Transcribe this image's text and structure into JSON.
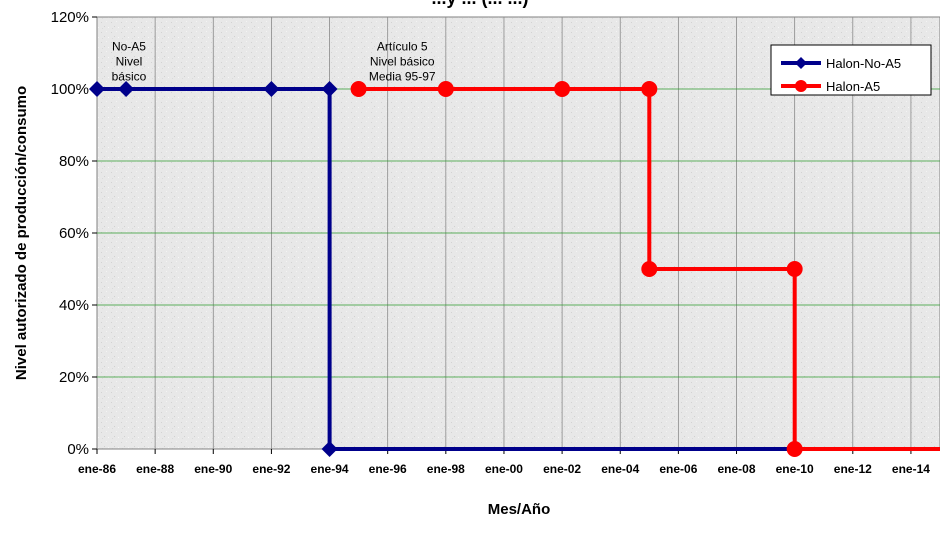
{
  "chart_data": {
    "type": "line",
    "title": "...y ... (... ...)",
    "xlabel": "Mes/Año",
    "ylabel": "Nivel autorizado de producción/consumo",
    "x_tick_labels": [
      "ene-86",
      "ene-88",
      "ene-90",
      "ene-92",
      "ene-94",
      "ene-96",
      "ene-98",
      "ene-00",
      "ene-02",
      "ene-04",
      "ene-06",
      "ene-08",
      "ene-10",
      "ene-12",
      "ene-14"
    ],
    "x_tick_years": [
      1986,
      1988,
      1990,
      1992,
      1994,
      1996,
      1998,
      2000,
      2002,
      2004,
      2006,
      2008,
      2010,
      2012,
      2014
    ],
    "xlim": [
      1986,
      2015
    ],
    "y_tick_labels": [
      "0%",
      "20%",
      "40%",
      "60%",
      "80%",
      "100%",
      "120%"
    ],
    "ylim": [
      0,
      1.2
    ],
    "y_ticks": [
      0,
      0.2,
      0.4,
      0.6,
      0.8,
      1.0,
      1.2
    ],
    "grid": true,
    "legend_position": "top-right",
    "series": [
      {
        "name": "Halon-No-A5",
        "color": "#00008b",
        "marker": "diamond",
        "step": true,
        "points": [
          [
            1986,
            1.0
          ],
          [
            1987,
            1.0
          ],
          [
            1992,
            1.0
          ],
          [
            1994,
            1.0
          ],
          [
            1994,
            0.0
          ],
          [
            2015,
            0.0
          ]
        ],
        "markers": [
          [
            1986,
            1.0
          ],
          [
            1987,
            1.0
          ],
          [
            1992,
            1.0
          ],
          [
            1994,
            1.0
          ],
          [
            1994,
            0.0
          ]
        ]
      },
      {
        "name": "Halon-A5",
        "color": "#ff0000",
        "marker": "circle",
        "step": true,
        "points": [
          [
            1995,
            1.0
          ],
          [
            1998,
            1.0
          ],
          [
            2002,
            1.0
          ],
          [
            2005,
            1.0
          ],
          [
            2005,
            0.5
          ],
          [
            2010,
            0.5
          ],
          [
            2010,
            0.0
          ],
          [
            2015,
            0.0
          ]
        ],
        "markers": [
          [
            1995,
            1.0
          ],
          [
            1998,
            1.0
          ],
          [
            2002,
            1.0
          ],
          [
            2005,
            1.0
          ],
          [
            2005,
            0.5
          ],
          [
            2010,
            0.5
          ],
          [
            2010,
            0.0
          ]
        ]
      }
    ],
    "annotations": [
      {
        "lines": [
          "No-A5",
          "Nivel",
          "básico"
        ],
        "x": 1987.1,
        "y": 1.16
      },
      {
        "lines": [
          "Artículo 5",
          "Nivel básico",
          "Media 95-97"
        ],
        "x": 1996.5,
        "y": 1.16
      }
    ]
  }
}
